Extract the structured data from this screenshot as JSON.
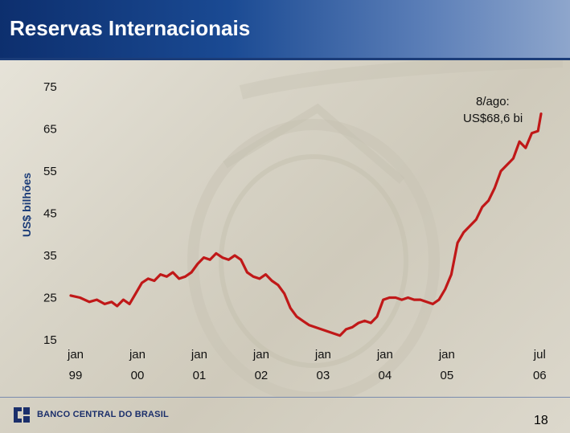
{
  "header": {
    "title": "Reservas Internacionais"
  },
  "footer": {
    "logo_text": "BANCO CENTRAL DO BRASIL",
    "page_number": "18"
  },
  "colors": {
    "header": "#1a4a93",
    "line": "#c01818",
    "ylabel": "#1b3c78"
  },
  "chart_data": {
    "type": "line",
    "title": "",
    "xlabel": "",
    "ylabel": "US$ bilhões",
    "ylim": [
      15,
      75
    ],
    "yticks": [
      75,
      65,
      55,
      45,
      35,
      25,
      15
    ],
    "xticks": [
      {
        "line1": "jan",
        "line2": "99",
        "x": 1999.0
      },
      {
        "line1": "jan",
        "line2": "00",
        "x": 2000.0
      },
      {
        "line1": "jan",
        "line2": "01",
        "x": 2001.0
      },
      {
        "line1": "jan",
        "line2": "02",
        "x": 2002.0
      },
      {
        "line1": "jan",
        "line2": "03",
        "x": 2003.0
      },
      {
        "line1": "jan",
        "line2": "04",
        "x": 2004.0
      },
      {
        "line1": "jan",
        "line2": "05",
        "x": 2005.0
      },
      {
        "line1": "jul",
        "line2": "06",
        "x": 2006.5
      }
    ],
    "annotation": {
      "line1": "8/ago:",
      "line2": "US$68,6 bi"
    },
    "series": [
      {
        "x": [
          1999.0,
          1999.15,
          1999.3,
          1999.42,
          1999.55,
          1999.66,
          1999.75,
          1999.85,
          1999.95,
          2000.05,
          2000.15,
          2000.25,
          2000.35,
          2000.45,
          2000.55,
          2000.65,
          2000.75,
          2000.85,
          2000.95,
          2001.05,
          2001.15,
          2001.25,
          2001.35,
          2001.45,
          2001.55,
          2001.65,
          2001.75,
          2001.85,
          2001.95,
          2002.05,
          2002.15,
          2002.25,
          2002.35,
          2002.45,
          2002.55,
          2002.65,
          2002.75,
          2002.85,
          2002.95,
          2003.05,
          2003.15,
          2003.25,
          2003.35,
          2003.45,
          2003.55,
          2003.65,
          2003.75,
          2003.85,
          2003.95,
          2004.05,
          2004.15,
          2004.25,
          2004.35,
          2004.45,
          2004.55,
          2004.65,
          2004.75,
          2004.85,
          2004.95,
          2005.05,
          2005.15,
          2005.25,
          2005.35,
          2005.45,
          2005.55,
          2005.65,
          2005.75,
          2005.85,
          2005.95,
          2006.05,
          2006.15,
          2006.25,
          2006.35,
          2006.45,
          2006.55,
          2006.6
        ],
        "y": [
          25.5,
          25.0,
          24.0,
          24.5,
          23.5,
          24.0,
          23.0,
          24.5,
          23.5,
          26.0,
          28.5,
          29.5,
          29.0,
          30.5,
          30.0,
          31.0,
          29.5,
          30.0,
          31.0,
          33.0,
          34.5,
          34.0,
          35.5,
          34.5,
          34.0,
          35.0,
          34.0,
          31.0,
          30.0,
          29.5,
          30.5,
          29.0,
          28.0,
          26.0,
          22.5,
          20.5,
          19.5,
          18.5,
          18.0,
          17.5,
          17.0,
          16.5,
          16.0,
          17.5,
          18.0,
          19.0,
          19.5,
          19.0,
          20.5,
          24.5,
          25.0,
          25.0,
          24.5,
          25.0,
          24.5,
          24.5,
          24.0,
          23.5,
          24.5,
          27.0,
          30.5,
          38.0,
          40.5,
          42.0,
          43.5,
          46.5,
          48.0,
          51.0,
          55.0,
          56.5,
          58.0,
          62.0,
          60.5,
          64.0,
          64.5,
          68.6
        ]
      }
    ]
  }
}
